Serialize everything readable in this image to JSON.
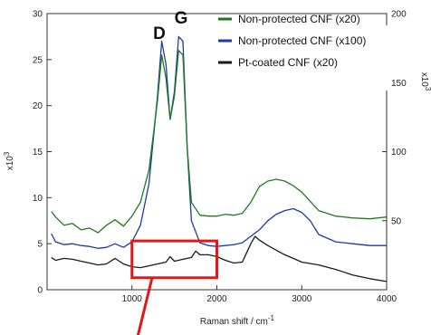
{
  "chart_data": {
    "type": "line",
    "xlabel_text": "Raman shift / cm",
    "xlabel_sup": "-1",
    "ylabel_left": "x10",
    "ylabel_left_sup": "3",
    "ylabel_right": "x10",
    "ylabel_right_sup": "3",
    "xlim": [
      0,
      4000
    ],
    "ylim_left": [
      0,
      30
    ],
    "ylim_right": [
      0,
      200
    ],
    "x_ticks": [
      1000,
      2000,
      3000,
      4000
    ],
    "y_ticks_left": [
      0,
      5,
      10,
      15,
      20,
      25,
      30
    ],
    "y_ticks_right": [
      50,
      100,
      150,
      200
    ],
    "legend_position": "top-right",
    "grid": false,
    "annotations": [
      {
        "text": "D",
        "x": 1350
      },
      {
        "text": "G",
        "x": 1590
      }
    ],
    "highlight_box": {
      "x_range": [
        1000,
        2000
      ],
      "y_range": [
        1.3,
        5.3
      ],
      "color": "#e01818"
    },
    "series": [
      {
        "name": "Non-protected CNF (x20)",
        "color": "#1f7a1f",
        "x": [
          50,
          100,
          200,
          300,
          400,
          500,
          600,
          700,
          800,
          900,
          1000,
          1100,
          1200,
          1300,
          1350,
          1400,
          1450,
          1500,
          1550,
          1600,
          1650,
          1700,
          1800,
          1900,
          2000,
          2100,
          2200,
          2300,
          2400,
          2500,
          2600,
          2700,
          2800,
          2900,
          3000,
          3100,
          3200,
          3400,
          3600,
          3800,
          4000
        ],
        "y": [
          8.5,
          7.9,
          7.0,
          7.2,
          6.5,
          6.7,
          6.2,
          7.0,
          7.6,
          6.9,
          8.0,
          9.5,
          13.0,
          20.5,
          25.5,
          23.0,
          18.5,
          21.0,
          26.0,
          25.5,
          15.5,
          9.5,
          8.1,
          8.0,
          8.0,
          8.2,
          8.1,
          8.3,
          9.5,
          11.2,
          11.8,
          12.0,
          11.8,
          11.3,
          10.6,
          9.6,
          8.6,
          8.0,
          7.8,
          7.7,
          7.9
        ]
      },
      {
        "name": "Non-protected CNF (x100)",
        "color": "#1c3aa8",
        "x": [
          50,
          100,
          200,
          300,
          400,
          500,
          600,
          700,
          800,
          900,
          1000,
          1100,
          1200,
          1300,
          1350,
          1400,
          1450,
          1500,
          1550,
          1600,
          1650,
          1700,
          1800,
          1900,
          2000,
          2100,
          2200,
          2300,
          2400,
          2500,
          2600,
          2700,
          2800,
          2900,
          3000,
          3100,
          3200,
          3400,
          3600,
          3800,
          4000
        ],
        "y": [
          6.1,
          5.2,
          4.9,
          5.0,
          4.8,
          4.7,
          4.5,
          4.6,
          5.0,
          4.6,
          5.2,
          7.0,
          11.5,
          21.0,
          27.0,
          24.5,
          18.5,
          21.5,
          27.5,
          27.0,
          15.5,
          7.5,
          5.1,
          4.8,
          4.7,
          4.8,
          4.9,
          5.1,
          5.8,
          6.5,
          7.5,
          8.2,
          8.6,
          8.8,
          8.4,
          7.5,
          6.0,
          5.2,
          5.0,
          4.8,
          4.8
        ]
      },
      {
        "name": "Pt-coated CNF (x20)",
        "color": "#1a1a1a",
        "x": [
          50,
          100,
          200,
          300,
          400,
          500,
          600,
          700,
          800,
          900,
          1000,
          1100,
          1200,
          1300,
          1400,
          1450,
          1500,
          1600,
          1700,
          1750,
          1800,
          1900,
          2000,
          2100,
          2200,
          2300,
          2350,
          2400,
          2450,
          2500,
          2600,
          2700,
          2800,
          2900,
          3000,
          3200,
          3400,
          3600,
          3800,
          4000
        ],
        "y": [
          3.5,
          3.2,
          3.4,
          3.3,
          3.1,
          2.9,
          2.7,
          2.8,
          3.4,
          2.8,
          2.5,
          2.4,
          2.6,
          2.8,
          3.0,
          3.6,
          3.1,
          3.3,
          3.5,
          4.2,
          3.8,
          3.8,
          3.6,
          3.2,
          2.9,
          3.0,
          4.0,
          5.0,
          5.8,
          5.4,
          4.8,
          4.3,
          3.8,
          3.4,
          3.0,
          2.7,
          2.2,
          1.6,
          1.2,
          0.9
        ]
      }
    ]
  }
}
